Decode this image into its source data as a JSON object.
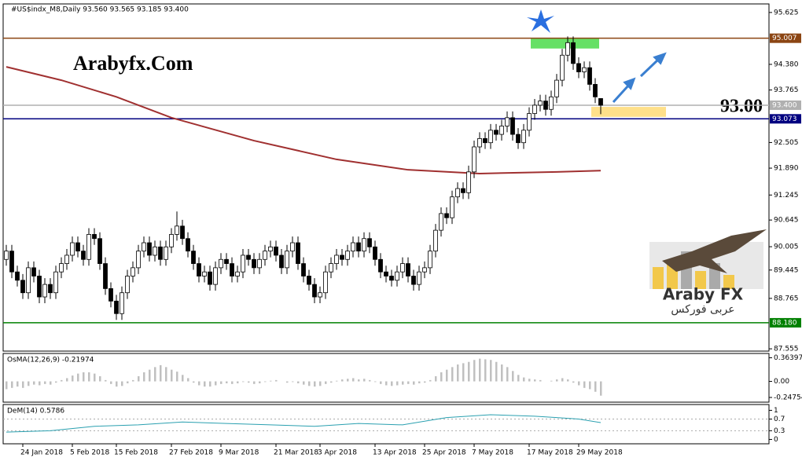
{
  "chart_data": {
    "type": "candlestick",
    "header": "#US$indx_M8,Daily  93.560 93.565 93.185 93.400",
    "watermark": "Arabyfx.Com",
    "annotation": "93.00",
    "logo": {
      "title": "Araby FX",
      "subtitle": "عربى فوركس"
    },
    "categories": [
      null,
      null,
      null,
      "24 Jan 2018",
      null,
      null,
      null,
      null,
      null,
      null,
      null,
      null,
      "5 Feb 2018",
      null,
      null,
      null,
      null,
      null,
      null,
      null,
      "15 Feb 2018",
      null,
      null,
      null,
      null,
      null,
      null,
      null,
      null,
      null,
      "27 Feb 2018",
      null,
      null,
      null,
      null,
      null,
      null,
      null,
      null,
      "9 Mar 2018",
      null,
      null,
      null,
      null,
      null,
      null,
      null,
      null,
      null,
      "21 Mar 2018",
      null,
      null,
      null,
      null,
      null,
      null,
      null,
      "3 Apr 2018",
      null,
      null,
      null,
      null,
      null,
      null,
      null,
      null,
      null,
      "13 Apr 2018",
      null,
      null,
      null,
      null,
      null,
      null,
      null,
      null,
      "25 Apr 2018",
      null,
      null,
      null,
      null,
      null,
      null,
      null,
      null,
      "7 May 2018",
      null,
      null,
      null,
      null,
      null,
      null,
      null,
      null,
      null,
      "17 May 2018",
      null,
      null,
      null,
      null,
      null,
      null,
      null,
      null,
      "29 May 2018",
      null,
      null,
      null,
      null
    ],
    "ohlc": [
      [
        89.7,
        90.05,
        89.55,
        89.9
      ],
      [
        89.9,
        90.05,
        89.25,
        89.4
      ],
      [
        89.4,
        89.55,
        89.05,
        89.2
      ],
      [
        89.2,
        89.35,
        88.75,
        88.9
      ],
      [
        88.9,
        89.65,
        88.75,
        89.5
      ],
      [
        89.5,
        89.65,
        89.15,
        89.3
      ],
      [
        89.3,
        89.45,
        88.65,
        88.8
      ],
      [
        88.8,
        89.25,
        88.65,
        89.1
      ],
      [
        89.1,
        89.25,
        88.75,
        88.9
      ],
      [
        88.9,
        89.55,
        88.75,
        89.4
      ],
      [
        89.4,
        89.75,
        89.25,
        89.6
      ],
      [
        89.6,
        89.95,
        89.45,
        89.8
      ],
      [
        89.8,
        90.25,
        89.65,
        90.1
      ],
      [
        90.1,
        90.25,
        89.75,
        89.9
      ],
      [
        89.9,
        90.05,
        89.55,
        89.7
      ],
      [
        89.7,
        90.45,
        89.55,
        90.3
      ],
      [
        90.3,
        90.45,
        90.05,
        90.2
      ],
      [
        90.2,
        90.35,
        89.45,
        89.6
      ],
      [
        89.6,
        89.75,
        88.85,
        89.0
      ],
      [
        89.0,
        89.15,
        88.55,
        88.7
      ],
      [
        88.7,
        88.85,
        88.25,
        88.4
      ],
      [
        88.4,
        89.05,
        88.25,
        88.9
      ],
      [
        88.9,
        89.45,
        88.75,
        89.3
      ],
      [
        89.3,
        89.65,
        89.15,
        89.5
      ],
      [
        89.5,
        90.05,
        89.35,
        89.9
      ],
      [
        89.9,
        90.25,
        89.75,
        90.1
      ],
      [
        90.1,
        90.25,
        89.65,
        89.8
      ],
      [
        89.8,
        90.15,
        89.65,
        90.0
      ],
      [
        90.0,
        90.15,
        89.55,
        89.7
      ],
      [
        89.7,
        90.15,
        89.55,
        90.0
      ],
      [
        90.0,
        90.45,
        89.85,
        90.3
      ],
      [
        90.3,
        90.85,
        90.15,
        90.5
      ],
      [
        90.5,
        90.65,
        90.05,
        90.2
      ],
      [
        90.2,
        90.35,
        89.75,
        89.9
      ],
      [
        89.9,
        90.05,
        89.45,
        89.6
      ],
      [
        89.6,
        89.75,
        89.15,
        89.3
      ],
      [
        89.3,
        89.55,
        89.15,
        89.4
      ],
      [
        89.4,
        89.55,
        88.95,
        89.1
      ],
      [
        89.1,
        89.65,
        88.95,
        89.5
      ],
      [
        89.5,
        89.85,
        89.35,
        89.7
      ],
      [
        89.7,
        89.85,
        89.45,
        89.6
      ],
      [
        89.6,
        89.75,
        89.15,
        89.3
      ],
      [
        89.3,
        89.55,
        89.15,
        89.4
      ],
      [
        89.4,
        89.95,
        89.25,
        89.8
      ],
      [
        89.8,
        89.95,
        89.55,
        89.7
      ],
      [
        89.7,
        89.85,
        89.35,
        89.5
      ],
      [
        89.5,
        89.85,
        89.35,
        89.7
      ],
      [
        89.7,
        90.05,
        89.55,
        89.9
      ],
      [
        89.9,
        90.15,
        89.75,
        90.0
      ],
      [
        90.0,
        90.15,
        89.65,
        89.8
      ],
      [
        89.8,
        89.95,
        89.35,
        89.5
      ],
      [
        89.5,
        90.05,
        89.35,
        89.9
      ],
      [
        89.9,
        90.25,
        89.75,
        90.1
      ],
      [
        90.1,
        90.25,
        89.45,
        89.6
      ],
      [
        89.6,
        89.75,
        89.15,
        89.3
      ],
      [
        89.3,
        89.45,
        88.95,
        89.1
      ],
      [
        89.1,
        89.25,
        88.65,
        88.8
      ],
      [
        88.8,
        89.05,
        88.65,
        88.9
      ],
      [
        88.9,
        89.55,
        88.75,
        89.4
      ],
      [
        89.4,
        89.75,
        89.25,
        89.6
      ],
      [
        89.6,
        89.95,
        89.45,
        89.8
      ],
      [
        89.8,
        89.95,
        89.55,
        89.7
      ],
      [
        89.7,
        90.05,
        89.55,
        89.9
      ],
      [
        89.9,
        90.25,
        89.75,
        90.1
      ],
      [
        90.1,
        90.25,
        89.75,
        89.9
      ],
      [
        89.9,
        90.35,
        89.75,
        90.2
      ],
      [
        90.2,
        90.35,
        89.85,
        90.0
      ],
      [
        90.0,
        90.15,
        89.55,
        89.7
      ],
      [
        89.7,
        89.85,
        89.25,
        89.4
      ],
      [
        89.4,
        89.55,
        89.15,
        89.3
      ],
      [
        89.3,
        89.45,
        89.05,
        89.2
      ],
      [
        89.2,
        89.55,
        89.05,
        89.4
      ],
      [
        89.4,
        89.75,
        89.25,
        89.6
      ],
      [
        89.6,
        89.75,
        89.15,
        89.3
      ],
      [
        89.3,
        89.45,
        88.95,
        89.1
      ],
      [
        89.1,
        89.55,
        88.95,
        89.4
      ],
      [
        89.4,
        89.65,
        89.25,
        89.5
      ],
      [
        89.5,
        90.05,
        89.35,
        89.9
      ],
      [
        89.9,
        90.55,
        89.75,
        90.4
      ],
      [
        90.4,
        90.95,
        90.25,
        90.8
      ],
      [
        90.8,
        90.95,
        90.55,
        90.7
      ],
      [
        90.7,
        91.35,
        90.55,
        91.2
      ],
      [
        91.2,
        91.55,
        91.05,
        91.4
      ],
      [
        91.4,
        91.55,
        91.15,
        91.3
      ],
      [
        91.3,
        91.95,
        91.15,
        91.8
      ],
      [
        91.8,
        92.55,
        91.65,
        92.4
      ],
      [
        92.4,
        92.75,
        92.25,
        92.6
      ],
      [
        92.6,
        92.75,
        92.35,
        92.5
      ],
      [
        92.5,
        92.95,
        92.35,
        92.8
      ],
      [
        92.8,
        92.95,
        92.55,
        92.7
      ],
      [
        92.7,
        93.05,
        92.55,
        92.9
      ],
      [
        92.9,
        93.25,
        92.75,
        93.1
      ],
      [
        93.1,
        93.25,
        92.55,
        92.7
      ],
      [
        92.7,
        92.85,
        92.35,
        92.5
      ],
      [
        92.5,
        92.95,
        92.35,
        92.8
      ],
      [
        92.8,
        93.35,
        92.65,
        93.2
      ],
      [
        93.2,
        93.55,
        93.05,
        93.4
      ],
      [
        93.4,
        93.65,
        93.25,
        93.5
      ],
      [
        93.5,
        93.65,
        93.15,
        93.3
      ],
      [
        93.3,
        93.75,
        93.15,
        93.6
      ],
      [
        93.6,
        94.15,
        93.45,
        94.0
      ],
      [
        94.0,
        94.75,
        93.85,
        94.6
      ],
      [
        94.6,
        95.05,
        94.45,
        94.9
      ],
      [
        94.9,
        95.05,
        94.25,
        94.4
      ],
      [
        94.4,
        94.55,
        94.05,
        94.2
      ],
      [
        94.2,
        94.45,
        94.05,
        94.3
      ],
      [
        94.3,
        94.45,
        93.75,
        93.9
      ],
      [
        93.9,
        94.05,
        93.45,
        93.6
      ],
      [
        93.56,
        93.565,
        93.185,
        93.4
      ]
    ],
    "ma": {
      "color": "#a03030",
      "x": [
        0,
        10,
        20,
        30,
        45,
        60,
        73,
        86,
        100,
        108
      ],
      "values": [
        94.32,
        94.0,
        93.6,
        93.1,
        92.55,
        92.1,
        91.85,
        91.76,
        91.8,
        91.83
      ]
    },
    "levels": [
      {
        "value": 95.007,
        "color": "#8b4513"
      },
      {
        "value": 93.4,
        "label": "93.400",
        "color": "#b0b0b0"
      },
      {
        "value": 93.073,
        "color": "#000080"
      },
      {
        "value": 88.18,
        "label": "88.180",
        "color": "#008000"
      }
    ],
    "zones": [
      {
        "from": 94.76,
        "to": 95.0,
        "color": "#66e066"
      },
      {
        "from": 93.12,
        "to": 93.36,
        "color": "#ffe08a"
      }
    ],
    "ylim": [
      87.5,
      95.83
    ],
    "yticks": [
      95.625,
      {
        "value": 94.38,
        "label": "94.380"
      },
      93.765,
      92.505,
      {
        "value": 91.89,
        "label": "91.890"
      },
      91.245,
      90.645,
      90.005,
      89.445,
      88.765,
      87.555
    ],
    "osma": {
      "title": "OsMA(12,26,9) -0.21974",
      "color": "#c0c0c0",
      "values": [
        -0.12,
        -0.1,
        -0.08,
        -0.1,
        -0.07,
        -0.05,
        -0.06,
        -0.04,
        -0.05,
        -0.02,
        0.02,
        0.05,
        0.09,
        0.12,
        0.14,
        0.14,
        0.12,
        0.08,
        0.02,
        -0.04,
        -0.08,
        -0.07,
        -0.03,
        0.02,
        0.08,
        0.14,
        0.18,
        0.22,
        0.25,
        0.22,
        0.18,
        0.15,
        0.1,
        0.05,
        -0.02,
        -0.06,
        -0.08,
        -0.08,
        -0.06,
        -0.04,
        -0.03,
        -0.04,
        -0.03,
        -0.01,
        -0.02,
        -0.04,
        -0.03,
        -0.01,
        0.01,
        0.02,
        0.0,
        -0.02,
        -0.01,
        -0.03,
        -0.05,
        -0.07,
        -0.08,
        -0.07,
        -0.04,
        -0.02,
        0.01,
        0.03,
        0.04,
        0.05,
        0.03,
        0.04,
        0.02,
        -0.01,
        -0.04,
        -0.06,
        -0.07,
        -0.06,
        -0.05,
        -0.04,
        -0.05,
        -0.03,
        -0.02,
        0.02,
        0.08,
        0.14,
        0.18,
        0.22,
        0.26,
        0.28,
        0.3,
        0.33,
        0.35,
        0.34,
        0.33,
        0.3,
        0.26,
        0.22,
        0.16,
        0.1,
        0.06,
        0.04,
        0.03,
        0.02,
        0.0,
        0.01,
        0.03,
        0.05,
        0.03,
        -0.02,
        -0.06,
        -0.1,
        -0.12,
        -0.16,
        -0.21974
      ],
      "ylim": [
        -0.32,
        0.43
      ],
      "yticks": [
        0.36397,
        {
          "value": 0,
          "label": "0.00"
        },
        -0.24754
      ]
    },
    "dem": {
      "title": "DeM(14) 0.5786",
      "color": "#2aa0b0",
      "x": [
        0,
        8,
        16,
        24,
        32,
        40,
        48,
        56,
        64,
        72,
        80,
        88,
        96,
        100,
        104,
        108
      ],
      "values": [
        0.25,
        0.3,
        0.45,
        0.5,
        0.6,
        0.55,
        0.5,
        0.45,
        0.55,
        0.5,
        0.75,
        0.85,
        0.8,
        0.75,
        0.7,
        0.5786
      ],
      "ylim": [
        -0.15,
        1.2
      ],
      "yticks": [
        1,
        0.7,
        0.3,
        0
      ],
      "levels": [
        0.7,
        0.3
      ]
    }
  }
}
